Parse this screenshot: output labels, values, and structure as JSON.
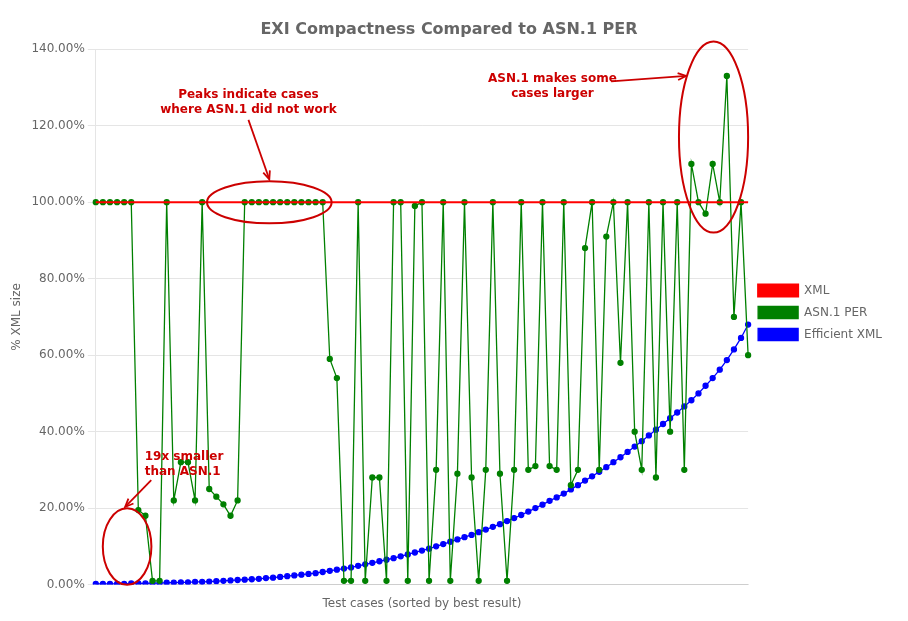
{
  "chart_data": {
    "type": "line",
    "title": "EXI Compactness Compared to ASN.1 PER",
    "x_label": "Test cases (sorted by best result)",
    "y_label": "% XML size",
    "categories": [
      null,
      null,
      null,
      null,
      null,
      null,
      null,
      null,
      null,
      null,
      null,
      null,
      null,
      null,
      null,
      null,
      null,
      null,
      null,
      null,
      null,
      null,
      null,
      null,
      null,
      null,
      null,
      null,
      null,
      null,
      null,
      null,
      null,
      null,
      null,
      null,
      null,
      null,
      null,
      null,
      null,
      null,
      null,
      null,
      null,
      null,
      null,
      null,
      null,
      null,
      null,
      null,
      null,
      null,
      null,
      null,
      null,
      null,
      null,
      null,
      null,
      null,
      null,
      null,
      null,
      null,
      null,
      null,
      null,
      null,
      null,
      null,
      null,
      null,
      null,
      null,
      null,
      null,
      null,
      null,
      null,
      null,
      null,
      null,
      null,
      null,
      null,
      null,
      null,
      null,
      null,
      null,
      null
    ],
    "series": [
      {
        "name": "XML",
        "color": "#ff0000",
        "marker": "none",
        "values": [
          1.0,
          1.0,
          1.0,
          1.0,
          1.0,
          1.0,
          1.0,
          1.0,
          1.0,
          1.0,
          1.0,
          1.0,
          1.0,
          1.0,
          1.0,
          1.0,
          1.0,
          1.0,
          1.0,
          1.0,
          1.0,
          1.0,
          1.0,
          1.0,
          1.0,
          1.0,
          1.0,
          1.0,
          1.0,
          1.0,
          1.0,
          1.0,
          1.0,
          1.0,
          1.0,
          1.0,
          1.0,
          1.0,
          1.0,
          1.0,
          1.0,
          1.0,
          1.0,
          1.0,
          1.0,
          1.0,
          1.0,
          1.0,
          1.0,
          1.0,
          1.0,
          1.0,
          1.0,
          1.0,
          1.0,
          1.0,
          1.0,
          1.0,
          1.0,
          1.0,
          1.0,
          1.0,
          1.0,
          1.0,
          1.0,
          1.0,
          1.0,
          1.0,
          1.0,
          1.0,
          1.0,
          1.0,
          1.0,
          1.0,
          1.0,
          1.0,
          1.0,
          1.0,
          1.0,
          1.0,
          1.0,
          1.0,
          1.0,
          1.0,
          1.0,
          1.0,
          1.0,
          1.0,
          1.0,
          1.0,
          1.0,
          1.0,
          1.0
        ]
      },
      {
        "name": "ASN.1 PER",
        "color": "#008000",
        "marker": "circle",
        "values": [
          1.0,
          1.0,
          1.0,
          1.0,
          1.0,
          1.0,
          0.195,
          0.18,
          0.01,
          0.01,
          1.0,
          0.22,
          0.32,
          0.32,
          0.22,
          1.0,
          0.25,
          0.23,
          0.21,
          0.18,
          0.22,
          1.0,
          1.0,
          1.0,
          1.0,
          1.0,
          1.0,
          1.0,
          1.0,
          1.0,
          1.0,
          1.0,
          1.0,
          0.59,
          0.54,
          0.01,
          0.01,
          1.0,
          0.01,
          0.28,
          0.28,
          0.01,
          1.0,
          1.0,
          0.01,
          0.99,
          1.0,
          0.01,
          0.3,
          1.0,
          0.01,
          0.29,
          1.0,
          0.28,
          0.01,
          0.3,
          1.0,
          0.29,
          0.01,
          0.3,
          1.0,
          0.3,
          0.31,
          1.0,
          0.31,
          0.3,
          1.0,
          0.26,
          0.3,
          0.88,
          1.0,
          0.3,
          0.91,
          1.0,
          0.58,
          1.0,
          0.4,
          0.3,
          1.0,
          0.28,
          1.0,
          0.4,
          1.0,
          0.3,
          1.1,
          1.0,
          0.97,
          1.1,
          1.0,
          1.33,
          0.7,
          1.0,
          0.6
        ]
      },
      {
        "name": "Efficient XML",
        "color": "#0000ff",
        "marker": "circle",
        "values": [
          0.002,
          0.002,
          0.002,
          0.002,
          0.002,
          0.003,
          0.003,
          0.003,
          0.004,
          0.004,
          0.005,
          0.005,
          0.006,
          0.006,
          0.007,
          0.007,
          0.008,
          0.009,
          0.01,
          0.011,
          0.012,
          0.013,
          0.014,
          0.015,
          0.017,
          0.018,
          0.02,
          0.022,
          0.024,
          0.026,
          0.028,
          0.03,
          0.033,
          0.036,
          0.039,
          0.042,
          0.045,
          0.049,
          0.053,
          0.057,
          0.061,
          0.065,
          0.069,
          0.074,
          0.079,
          0.084,
          0.089,
          0.094,
          0.1,
          0.106,
          0.112,
          0.118,
          0.124,
          0.13,
          0.137,
          0.144,
          0.151,
          0.158,
          0.166,
          0.174,
          0.182,
          0.191,
          0.2,
          0.209,
          0.219,
          0.228,
          0.238,
          0.249,
          0.26,
          0.272,
          0.283,
          0.295,
          0.307,
          0.32,
          0.333,
          0.347,
          0.361,
          0.375,
          0.39,
          0.405,
          0.42,
          0.435,
          0.45,
          0.466,
          0.482,
          0.5,
          0.52,
          0.54,
          0.562,
          0.587,
          0.615,
          0.645,
          0.68
        ]
      }
    ],
    "ylim": [
      0.0,
      1.4
    ],
    "yticks": [
      {
        "value": 0.0,
        "label": "0.00%"
      },
      {
        "value": 0.2,
        "label": "20.00%"
      },
      {
        "value": 0.4,
        "label": "40.00%"
      },
      {
        "value": 0.6,
        "label": "60.00%"
      },
      {
        "value": 0.8,
        "label": "80.00%"
      },
      {
        "value": 1.0,
        "label": "100.00%"
      },
      {
        "value": 1.2,
        "label": "120.00%"
      },
      {
        "value": 1.4,
        "label": "140.00%"
      }
    ],
    "tick_labels": "y",
    "grid": true,
    "legend": "right",
    "annotations": [
      "Peaks indicate cases\nwhere ASN.1 did not work",
      "19x smaller\nthan ASN.1",
      "ASN.1 makes some\ncases larger"
    ]
  }
}
